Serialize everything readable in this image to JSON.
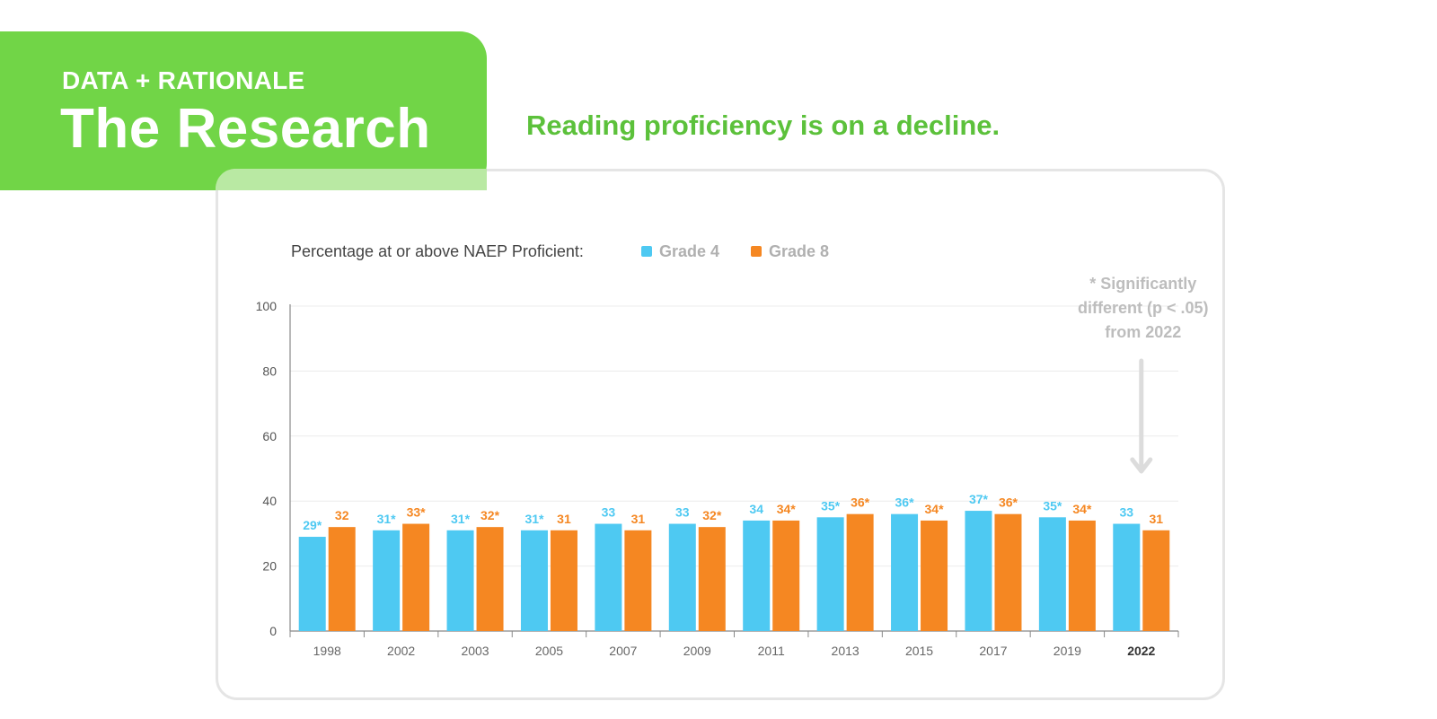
{
  "header": {
    "kicker": "DATA + RATIONALE",
    "title": "The Research"
  },
  "headline": "Reading proficiency is on a decline.",
  "colors": {
    "green_block": "#71d547",
    "headline_green": "#5cc13b",
    "grade4": "#4ec9f2",
    "grade8": "#f58722",
    "annotation_gray": "#bdbdbd"
  },
  "chart_data": {
    "type": "bar",
    "legend_title": "Percentage at or above NAEP Proficient:",
    "legend_placement": "top-left",
    "categories": [
      "1998",
      "2002",
      "2003",
      "2005",
      "2007",
      "2009",
      "2011",
      "2013",
      "2015",
      "2017",
      "2019",
      "2022"
    ],
    "series": [
      {
        "name": "Grade 4",
        "color": "#4ec9f2",
        "values": [
          29,
          31,
          31,
          31,
          33,
          33,
          34,
          35,
          36,
          37,
          35,
          33
        ],
        "labels": [
          "29*",
          "31*",
          "31*",
          "31*",
          "33",
          "33",
          "34",
          "35*",
          "36*",
          "37*",
          "35*",
          "33"
        ]
      },
      {
        "name": "Grade 8",
        "color": "#f58722",
        "values": [
          32,
          33,
          32,
          31,
          31,
          32,
          34,
          36,
          34,
          36,
          34,
          31
        ],
        "labels": [
          "32",
          "33*",
          "32*",
          "31",
          "31",
          "32*",
          "34*",
          "36*",
          "34*",
          "36*",
          "34*",
          "31"
        ]
      }
    ],
    "ylim": [
      0,
      100
    ],
    "yticks": [
      0,
      20,
      40,
      60,
      80,
      100
    ],
    "grid": true,
    "highlight_category": "2022",
    "annotation": {
      "lines": [
        "* Significantly",
        "different (p < .05)",
        "from 2022"
      ],
      "target": "2022"
    }
  }
}
